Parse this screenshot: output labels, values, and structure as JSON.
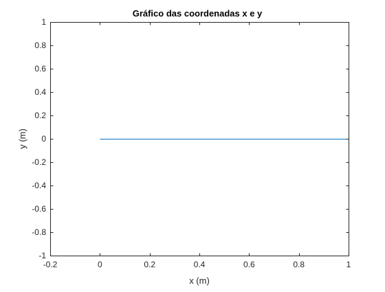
{
  "chart_data": {
    "type": "line",
    "title": "Gráfico das coordenadas x e y",
    "xlabel": "x (m)",
    "ylabel": "y (m)",
    "xlim": [
      -0.2,
      1
    ],
    "ylim": [
      -1,
      1
    ],
    "xticks": [
      -0.2,
      0,
      0.2,
      0.4,
      0.6,
      0.8,
      1
    ],
    "xtick_labels": [
      "-0.2",
      "0",
      "0.2",
      "0.4",
      "0.6",
      "0.8",
      "1"
    ],
    "yticks": [
      -1,
      -0.8,
      -0.6,
      -0.4,
      -0.2,
      0,
      0.2,
      0.4,
      0.6,
      0.8,
      1
    ],
    "ytick_labels": [
      "-1",
      "-0.8",
      "-0.6",
      "-0.4",
      "-0.2",
      "0",
      "0.2",
      "0.4",
      "0.6",
      "0.8",
      "1"
    ],
    "grid": false,
    "series": [
      {
        "color": "#0072bd",
        "x": [
          0,
          1
        ],
        "y": [
          0,
          0
        ]
      }
    ]
  }
}
